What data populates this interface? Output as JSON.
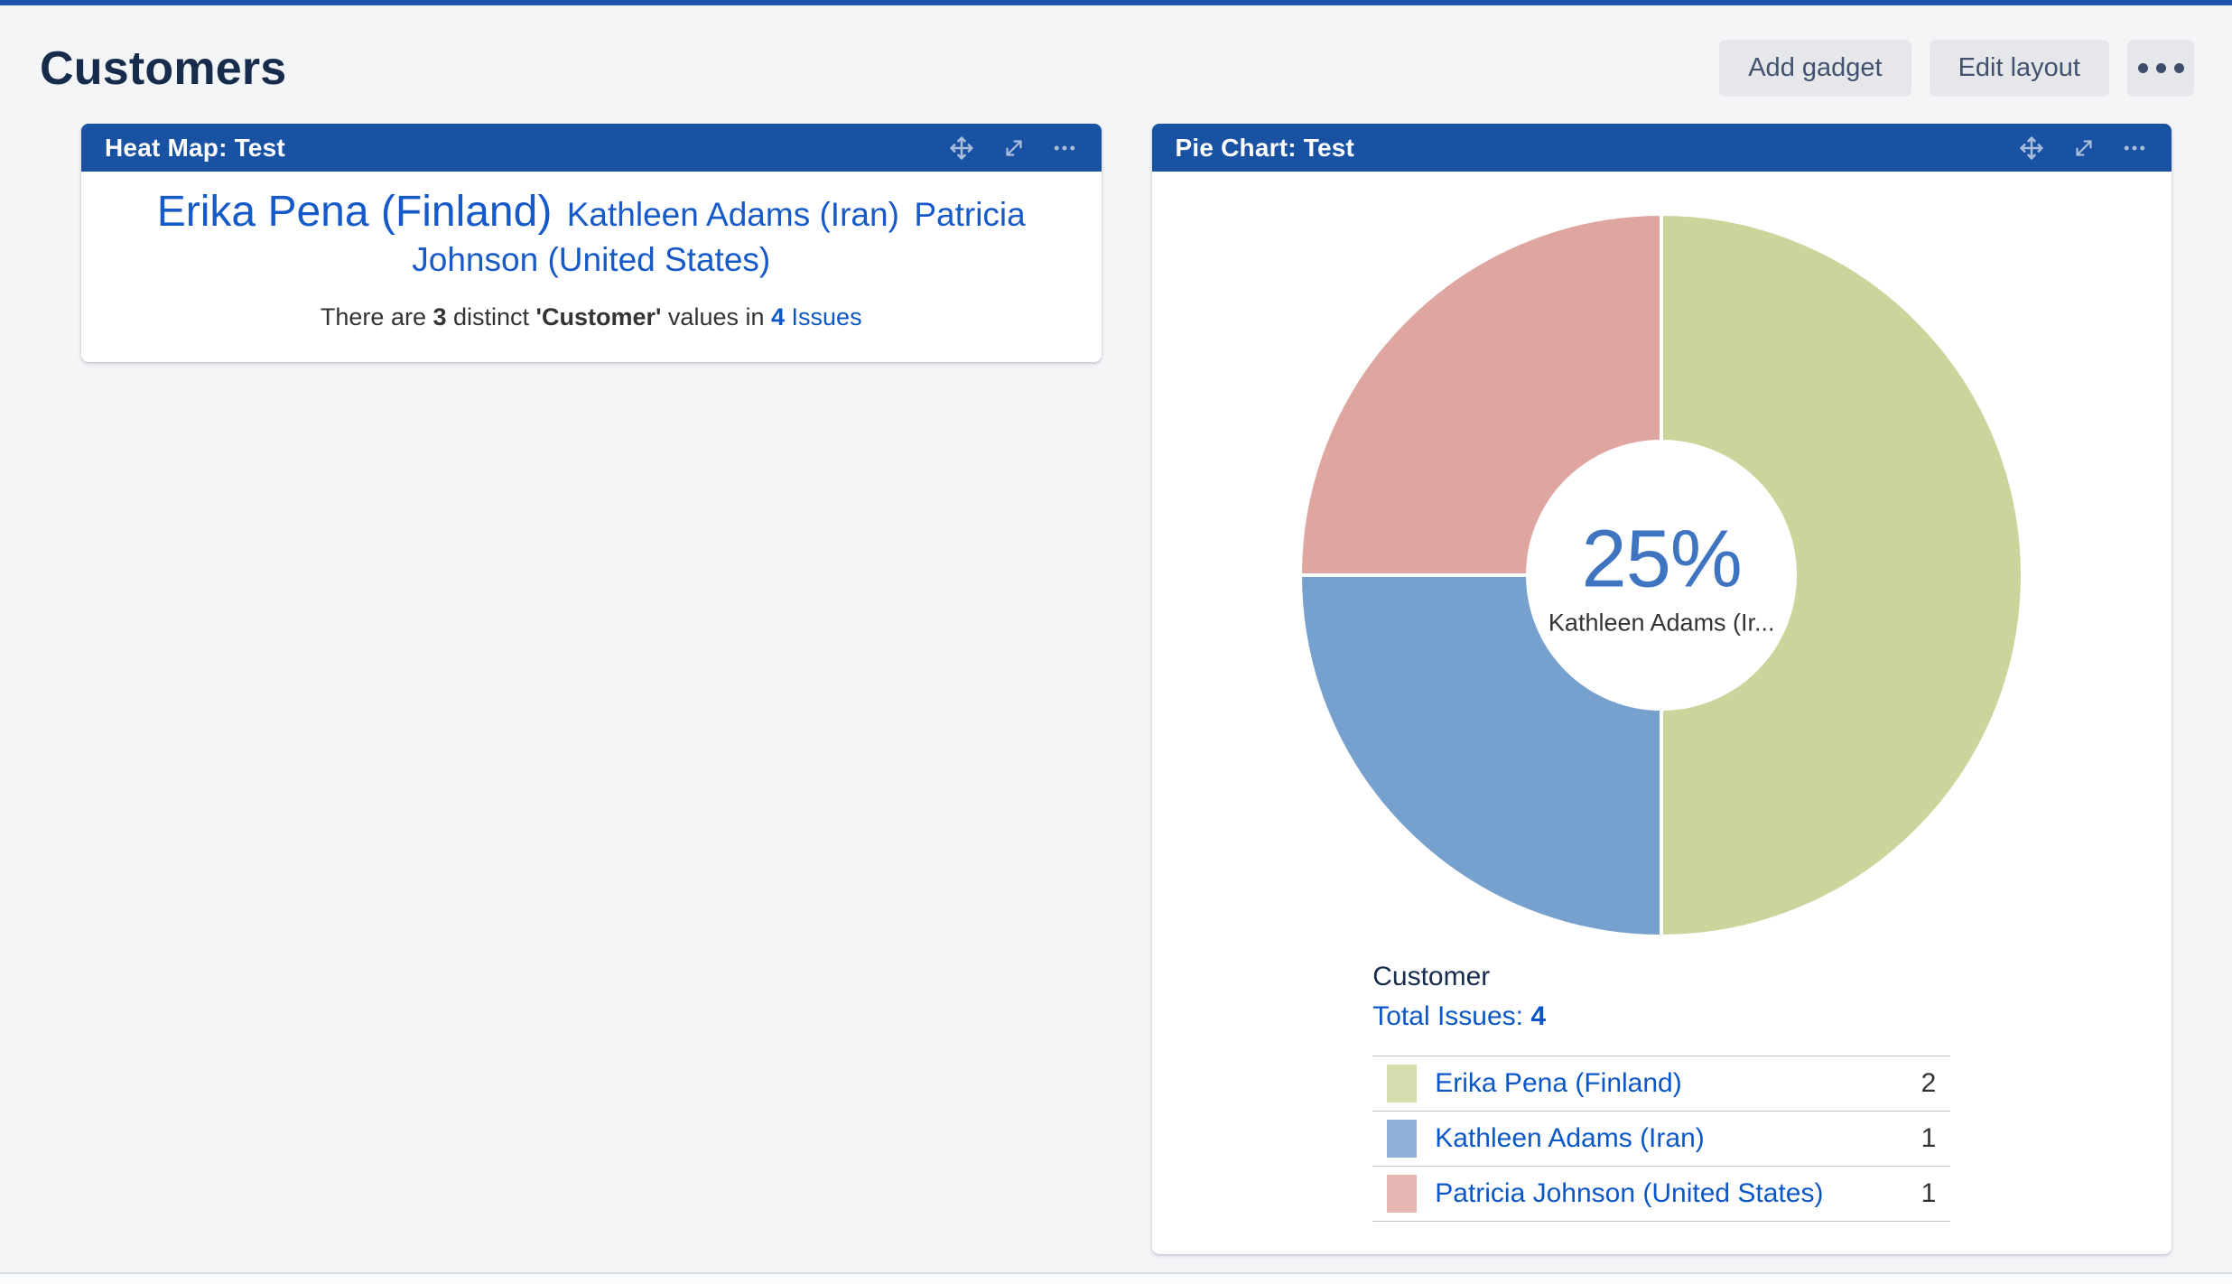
{
  "page": {
    "title": "Customers"
  },
  "toolbar": {
    "add_gadget_label": "Add gadget",
    "edit_layout_label": "Edit layout"
  },
  "heatmap_gadget": {
    "title": "Heat Map: Test",
    "items": [
      {
        "label": "Erika Pena (Finland)",
        "size": "large"
      },
      {
        "label": "Kathleen Adams (Iran)",
        "size": "medium"
      },
      {
        "label": "Patricia Johnson (United States)",
        "size": "medium"
      }
    ],
    "summary": {
      "prefix": "There are ",
      "distinct_count": "3",
      "mid1": " distinct ",
      "field_name": "'Customer'",
      "mid2": " values in ",
      "issues_count": "4",
      "issues_word": " Issues"
    }
  },
  "pie_gadget": {
    "title": "Pie Chart: Test",
    "field_label": "Customer",
    "total_label": "Total Issues: ",
    "total_value": "4"
  },
  "chart_data": {
    "type": "pie",
    "donut": true,
    "title": "Pie Chart: Test",
    "series_field": "Customer",
    "total_issues": 4,
    "start_angle_deg": 0,
    "direction": "clockwise",
    "outer_radius": 400,
    "inner_radius": 148,
    "slices": [
      {
        "label": "Erika Pena (Finland)",
        "value": 2,
        "percent": 50,
        "color": "#CBD59B"
      },
      {
        "label": "Kathleen Adams (Iran)",
        "value": 1,
        "percent": 25,
        "color": "#76A0CE"
      },
      {
        "label": "Patricia Johnson (United States)",
        "value": 1,
        "percent": 25,
        "color": "#DFA6A1"
      }
    ],
    "center_label": {
      "percent": "25%",
      "label": "Kathleen Adams (Ir..."
    },
    "legend_position": "bottom"
  },
  "colors": {
    "gadget_header": "#1951A3",
    "page_background": "#F4F5F7",
    "link_blue": "#0C57C8",
    "heatmap_link": "#1659C8",
    "center_percent": "#3E74C0",
    "title_text": "#172B4D"
  }
}
